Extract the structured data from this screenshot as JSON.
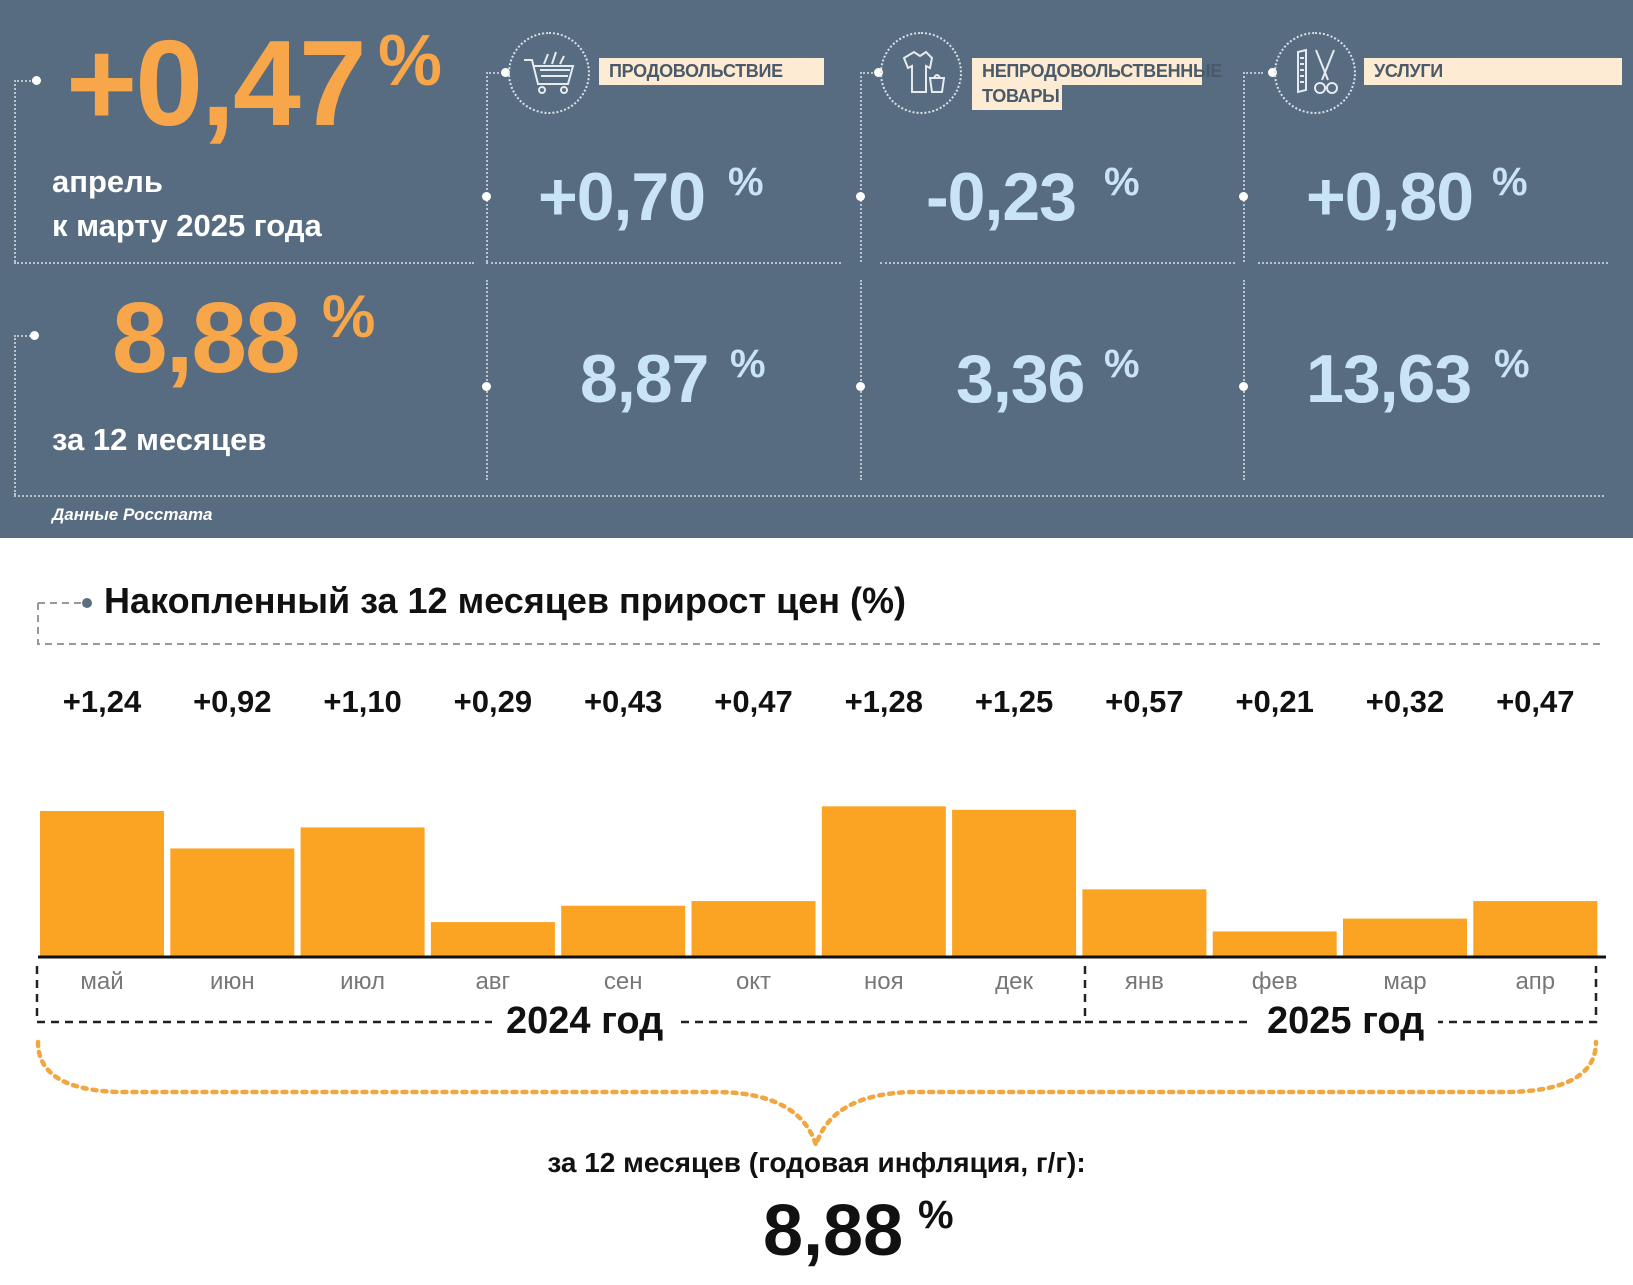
{
  "monthly": {
    "value": "+0,47",
    "unit": "%",
    "label_line1": "апрель",
    "label_line2": "к марту 2025 года"
  },
  "annual": {
    "value": "8,88",
    "unit": "%",
    "label": "за 12 месяцев"
  },
  "categories": [
    {
      "name": "ПРОДОВОЛЬСТВИЕ",
      "icon": "shopping-cart-icon",
      "monthly": "+0,70",
      "annual": "8,87",
      "unit": "%"
    },
    {
      "name_line1": "НЕПРОДОВОЛЬСТВЕННЫЕ",
      "name_line2": "ТОВАРЫ",
      "icon": "clothing-icon",
      "monthly": "-0,23",
      "annual": "3,36",
      "unit": "%"
    },
    {
      "name": "УСЛУГИ",
      "icon": "scissors-comb-icon",
      "monthly": "+0,80",
      "annual": "13,63",
      "unit": "%"
    }
  ],
  "source": "Данные Росстата",
  "colors": {
    "panel": "#576c80",
    "orange": "#f7a64a",
    "bar": "#fba423",
    "light_blue": "#c8e4f6"
  },
  "chart_data": {
    "type": "bar",
    "title": "Накопленный за 12 месяцев прирост цен (%)",
    "categories": [
      "май",
      "июн",
      "июл",
      "авг",
      "сен",
      "окт",
      "ноя",
      "дек",
      "янв",
      "фев",
      "мар",
      "апр"
    ],
    "values": [
      1.24,
      0.92,
      1.1,
      0.29,
      0.43,
      0.47,
      1.28,
      1.25,
      0.57,
      0.21,
      0.32,
      0.47
    ],
    "value_labels": [
      "+1,24",
      "+0,92",
      "+1,10",
      "+0,29",
      "+0,43",
      "+0,47",
      "+1,28",
      "+1,25",
      "+0,57",
      "+0,21",
      "+0,32",
      "+0,47"
    ],
    "groups": [
      "2024 год",
      "2025 год"
    ],
    "ylim": [
      0,
      1.3
    ],
    "grid": false,
    "summary_label": "за 12 месяцев (годовая инфляция, г/г):",
    "summary_value": "8,88",
    "summary_unit": "%"
  }
}
